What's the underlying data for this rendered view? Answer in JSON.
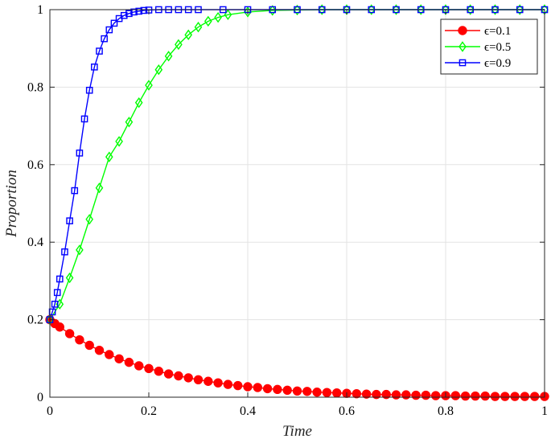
{
  "chart_data": {
    "type": "line",
    "xlabel": "Time",
    "ylabel": "Proportion",
    "xlim": [
      0,
      1
    ],
    "ylim": [
      0,
      1
    ],
    "xticks": [
      0,
      0.2,
      0.4,
      0.6,
      0.8,
      1
    ],
    "yticks": [
      0,
      0.2,
      0.4,
      0.6,
      0.8,
      1
    ],
    "xtick_labels": [
      "0",
      "0.2",
      "0.4",
      "0.6",
      "0.8",
      "1"
    ],
    "ytick_labels": [
      "0",
      "0.2",
      "0.4",
      "0.6",
      "0.8",
      "1"
    ],
    "grid": true,
    "legend_position": "top-right",
    "series": [
      {
        "name": "ϵ=0.1",
        "color": "#ff0000",
        "marker": "circle-filled",
        "x": [
          0,
          0.01,
          0.02,
          0.04,
          0.06,
          0.08,
          0.1,
          0.12,
          0.14,
          0.16,
          0.18,
          0.2,
          0.22,
          0.24,
          0.26,
          0.28,
          0.3,
          0.32,
          0.34,
          0.36,
          0.38,
          0.4,
          0.42,
          0.44,
          0.46,
          0.48,
          0.5,
          0.52,
          0.54,
          0.56,
          0.58,
          0.6,
          0.62,
          0.64,
          0.66,
          0.68,
          0.7,
          0.72,
          0.74,
          0.76,
          0.78,
          0.8,
          0.82,
          0.84,
          0.86,
          0.88,
          0.9,
          0.92,
          0.94,
          0.96,
          0.98,
          1.0
        ],
        "y": [
          0.2,
          0.19,
          0.181,
          0.164,
          0.148,
          0.134,
          0.121,
          0.11,
          0.099,
          0.09,
          0.081,
          0.074,
          0.067,
          0.06,
          0.055,
          0.05,
          0.045,
          0.041,
          0.037,
          0.033,
          0.03,
          0.027,
          0.025,
          0.022,
          0.02,
          0.018,
          0.016,
          0.015,
          0.013,
          0.012,
          0.011,
          0.01,
          0.009,
          0.008,
          0.007,
          0.007,
          0.006,
          0.006,
          0.005,
          0.005,
          0.004,
          0.004,
          0.004,
          0.003,
          0.003,
          0.003,
          0.002,
          0.002,
          0.002,
          0.002,
          0.002,
          0.002
        ]
      },
      {
        "name": "ϵ=0.5",
        "color": "#00ff00",
        "marker": "diamond",
        "x": [
          0,
          0.02,
          0.04,
          0.06,
          0.08,
          0.1,
          0.12,
          0.14,
          0.16,
          0.18,
          0.2,
          0.22,
          0.24,
          0.26,
          0.28,
          0.3,
          0.32,
          0.34,
          0.36,
          0.4,
          0.45,
          0.5,
          0.55,
          0.6,
          0.65,
          0.7,
          0.75,
          0.8,
          0.85,
          0.9,
          0.95,
          1.0
        ],
        "y": [
          0.2,
          0.24,
          0.308,
          0.38,
          0.459,
          0.54,
          0.62,
          0.66,
          0.71,
          0.76,
          0.805,
          0.845,
          0.88,
          0.91,
          0.935,
          0.955,
          0.97,
          0.98,
          0.987,
          0.994,
          0.998,
          0.999,
          1.0,
          1.0,
          1.0,
          1.0,
          1.0,
          1.0,
          1.0,
          1.0,
          1.0,
          1.0
        ]
      },
      {
        "name": "ϵ=0.9",
        "color": "#0000ff",
        "marker": "square",
        "x": [
          0,
          0.005,
          0.01,
          0.015,
          0.02,
          0.03,
          0.04,
          0.05,
          0.06,
          0.07,
          0.08,
          0.09,
          0.1,
          0.11,
          0.12,
          0.13,
          0.14,
          0.15,
          0.16,
          0.17,
          0.18,
          0.19,
          0.2,
          0.22,
          0.24,
          0.26,
          0.28,
          0.3,
          0.35,
          0.4,
          0.45,
          0.5,
          0.55,
          0.6,
          0.65,
          0.7,
          0.75,
          0.8,
          0.85,
          0.9,
          0.95,
          1.0
        ],
        "y": [
          0.2,
          0.22,
          0.24,
          0.27,
          0.305,
          0.375,
          0.455,
          0.533,
          0.63,
          0.718,
          0.792,
          0.852,
          0.893,
          0.925,
          0.948,
          0.965,
          0.977,
          0.985,
          0.99,
          0.994,
          0.996,
          0.998,
          0.999,
          1.0,
          1.0,
          1.0,
          1.0,
          1.0,
          1.0,
          1.0,
          1.0,
          1.0,
          1.0,
          1.0,
          1.0,
          1.0,
          1.0,
          1.0,
          1.0,
          1.0,
          1.0,
          1.0
        ]
      }
    ]
  }
}
